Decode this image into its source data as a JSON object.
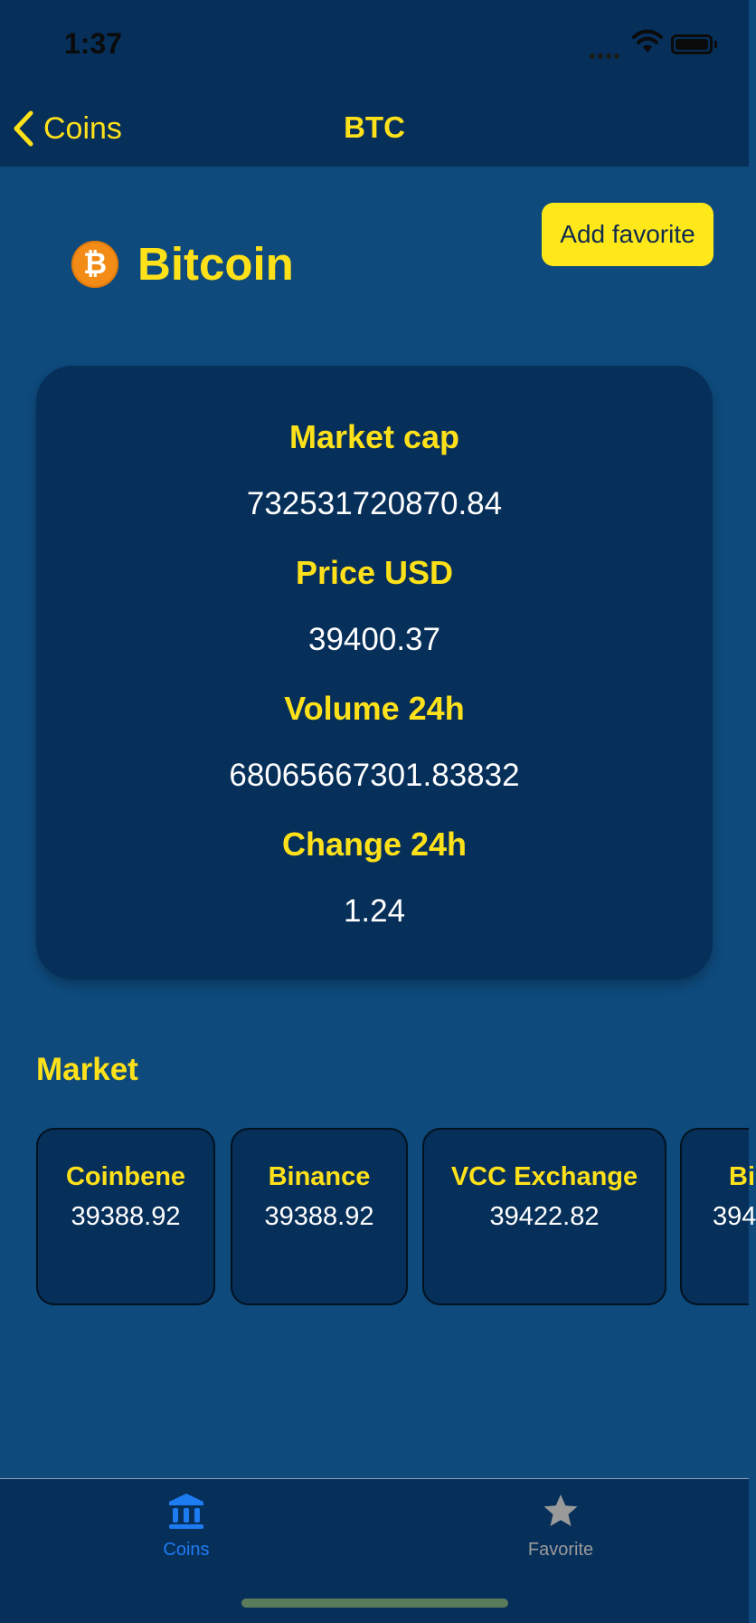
{
  "status": {
    "time": "1:37"
  },
  "nav": {
    "back_label": "Coins",
    "title": "BTC"
  },
  "coin": {
    "symbol_glyph": "₿",
    "name": "Bitcoin",
    "favorite_label": "Add favorite"
  },
  "stats": [
    {
      "label": "Market cap",
      "value": "732531720870.84"
    },
    {
      "label": "Price USD",
      "value": "39400.37"
    },
    {
      "label": "Volume 24h",
      "value": "68065667301.83832"
    },
    {
      "label": "Change 24h",
      "value": "1.24"
    }
  ],
  "market": {
    "title": "Market",
    "exchanges": [
      {
        "name": "Coinbene",
        "price": "39388.92"
      },
      {
        "name": "Binance",
        "price": "39388.92"
      },
      {
        "name": "VCC Exchange",
        "price": "39422.82"
      },
      {
        "name": "Bi",
        "price": "394"
      }
    ]
  },
  "tabs": [
    {
      "label": "Coins",
      "icon": "bank-icon",
      "active": true
    },
    {
      "label": "Favorite",
      "icon": "star-icon",
      "active": false
    }
  ],
  "colors": {
    "accent": "#ffe11a",
    "active_tab": "#1e7cf2",
    "inactive_tab": "#9a9a9a",
    "background": "#0e4a7c",
    "card": "#062f5a"
  }
}
